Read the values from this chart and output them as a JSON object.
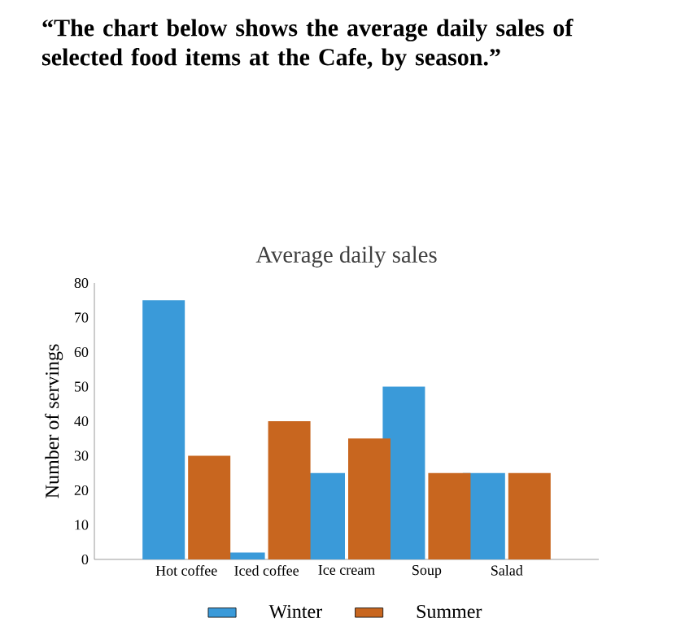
{
  "chart_data": {
    "type": "bar",
    "title": "Average daily sales",
    "ylabel": "Number of servings",
    "annotations": [
      "“The chart below shows the average daily sales of selected food items at the Cafe, by season.”"
    ],
    "categories": [
      "Hot coffee",
      "Iced coffee",
      "Ice cream",
      "Soup",
      "Salad"
    ],
    "series": [
      {
        "name": "Winter",
        "color": "#3a9ad9",
        "values": [
          75,
          2,
          25,
          50,
          25
        ]
      },
      {
        "name": "Summer",
        "color": "#c8661f",
        "values": [
          30,
          40,
          35,
          25,
          25
        ]
      }
    ],
    "ylim": [
      0,
      80
    ],
    "yticks": [
      0,
      10,
      20,
      30,
      40,
      50,
      60,
      70,
      80
    ],
    "legend": "bottom"
  }
}
